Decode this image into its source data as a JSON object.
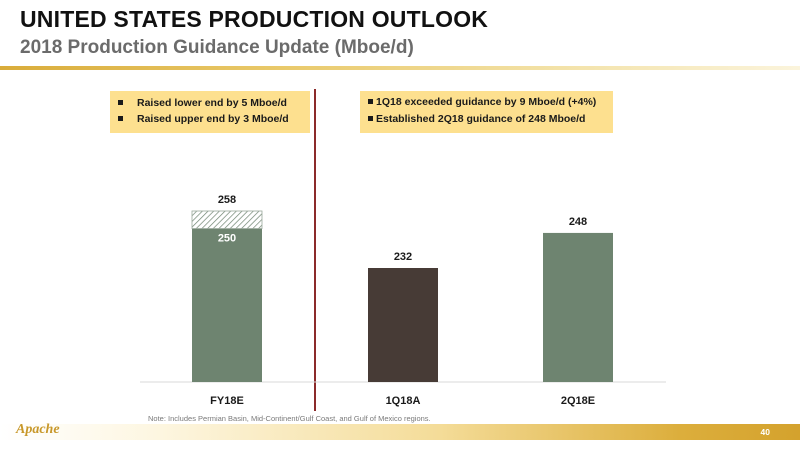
{
  "header": {
    "title": "UNITED STATES PRODUCTION OUTLOOK",
    "subtitle": "2018 Production Guidance Update (Mboe/d)"
  },
  "callouts": {
    "left": [
      "Raised lower end by 5 Mboe/d",
      "Raised upper end by 3 Mboe/d"
    ],
    "right": [
      "1Q18 exceeded guidance by 9 Mboe/d (+4%)",
      "Established 2Q18 guidance of 248 Mboe/d"
    ]
  },
  "colors": {
    "green": "#6e8470",
    "dark": "#473b36",
    "callout": "#fde08f",
    "divider": "#8b2a2a"
  },
  "chart_data": {
    "type": "bar",
    "categories": [
      "FY18E",
      "1Q18A",
      "2Q18E"
    ],
    "series": [
      {
        "values": [
          250,
          232,
          248
        ]
      },
      {
        "values": [
          8,
          0,
          0
        ]
      }
    ],
    "data_labels": [
      "258",
      "232",
      "248"
    ],
    "inner_labels": [
      "250",
      "",
      ""
    ],
    "bar_colors": [
      "#6e8470",
      "#473b36",
      "#6e8470"
    ],
    "ylim": [
      180,
      260
    ],
    "title": "",
    "xlabel": "",
    "ylabel": "",
    "grid": false
  },
  "note": "Note: Includes Permian Basin, Mid-Continent/Gulf Coast, and Gulf of Mexico regions.",
  "footer": {
    "logo_text": "Apache",
    "page_number": "40"
  }
}
